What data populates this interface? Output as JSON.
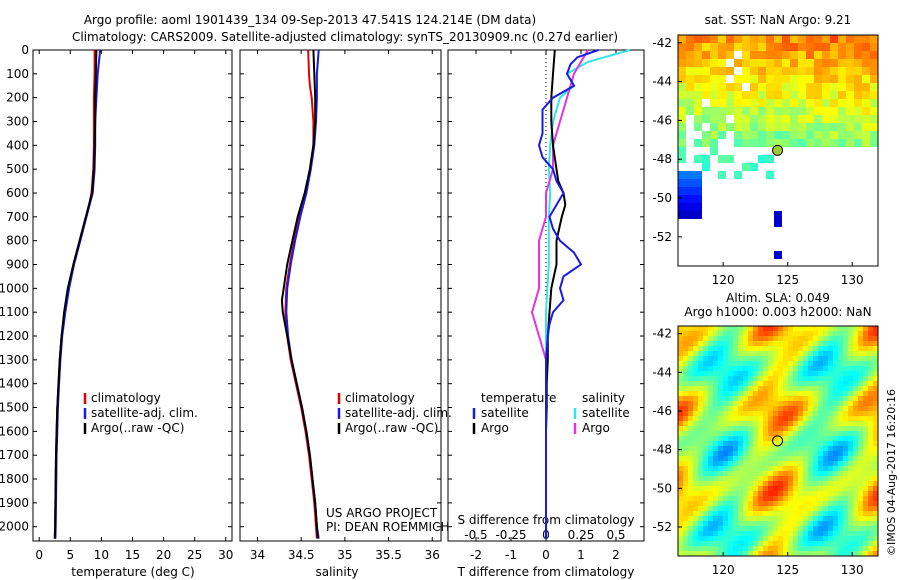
{
  "header": {
    "line1": "Argo profile: aoml 1901439_134 09-Sep-2013 47.541S 124.214E (DM data)",
    "line2": "Climatology: CARS2009. Satellite-adjusted climatology: synTS_20130909.nc (0.27d earlier)"
  },
  "colors": {
    "climatology": "#e00000",
    "satellite": "#1a1ae6",
    "argo": "#000000",
    "sal_satellite": "#33e6e6",
    "sal_argo": "#e633e6"
  },
  "chart_data": [
    {
      "type": "line",
      "title": "",
      "xlabel": "temperature (deg C)",
      "ylabel": "",
      "xlim": [
        -1,
        31
      ],
      "ylim": [
        2060,
        0
      ],
      "x_ticks": [
        "0",
        "5",
        "10",
        "15",
        "20",
        "25",
        "30"
      ],
      "y_ticks": [
        "0",
        "100",
        "200",
        "300",
        "400",
        "500",
        "600",
        "700",
        "800",
        "900",
        "1000",
        "1100",
        "1200",
        "1300",
        "1400",
        "1500",
        "1600",
        "1700",
        "1800",
        "1900",
        "2000"
      ],
      "legend": {
        "position": "lower-middle",
        "entries": [
          "climatology",
          "satellite-adj. clim.",
          "Argo(..raw -QC)"
        ]
      },
      "series": [
        {
          "name": "climatology",
          "depth": [
            0,
            100,
            200,
            300,
            400,
            500,
            600,
            650,
            700,
            800,
            900,
            1000,
            1100,
            1200,
            1300,
            1400,
            1500,
            1600,
            1700,
            1800,
            1900,
            2000,
            2050
          ],
          "values": [
            8.9,
            8.9,
            8.8,
            8.8,
            8.8,
            8.7,
            8.4,
            8.0,
            7.5,
            6.5,
            5.5,
            4.7,
            4.1,
            3.6,
            3.3,
            3.1,
            2.9,
            2.8,
            2.7,
            2.65,
            2.6,
            2.55,
            2.5
          ]
        },
        {
          "name": "satellite-adj. clim.",
          "depth": [
            0,
            100,
            200,
            300,
            400,
            500,
            600,
            650,
            700,
            800,
            900,
            1000,
            1100,
            1200,
            1300,
            1400,
            1500,
            1600,
            1700,
            1800,
            1900,
            2000,
            2050
          ],
          "values": [
            9.8,
            9.4,
            9.2,
            9.0,
            9.0,
            8.9,
            8.6,
            8.1,
            7.6,
            6.6,
            5.6,
            4.8,
            4.2,
            3.7,
            3.4,
            3.2,
            3.0,
            2.9,
            2.8,
            2.75,
            2.7,
            2.65,
            2.6
          ]
        },
        {
          "name": "Argo",
          "depth": [
            0,
            100,
            200,
            300,
            400,
            500,
            600,
            650,
            700,
            800,
            900,
            1000,
            1100,
            1200,
            1300,
            1400,
            1500,
            1600,
            1700,
            1800,
            1900,
            2000,
            2050
          ],
          "values": [
            9.2,
            9.1,
            9.0,
            9.0,
            8.9,
            8.8,
            8.5,
            8.0,
            7.5,
            6.5,
            5.5,
            4.6,
            4.0,
            3.6,
            3.3,
            3.1,
            2.9,
            2.8,
            2.7,
            2.65,
            2.6,
            2.55,
            2.5
          ]
        }
      ]
    },
    {
      "type": "line",
      "xlabel": "salinity",
      "xlim": [
        33.8,
        36.1
      ],
      "ylim": [
        2060,
        0
      ],
      "x_ticks": [
        "34",
        "34.5",
        "35",
        "35.5",
        "36"
      ],
      "legend": {
        "position": "lower-right",
        "entries": [
          "climatology",
          "satellite-adj. clim.",
          "Argo(..raw -QC)"
        ]
      },
      "annotation": [
        "US ARGO PROJECT",
        "PI: DEAN ROEMMICH"
      ],
      "series": [
        {
          "name": "climatology",
          "depth": [
            0,
            100,
            150,
            200,
            300,
            400,
            500,
            600,
            700,
            800,
            900,
            1000,
            1100,
            1200,
            1300,
            1400,
            1500,
            1600,
            1700,
            1800,
            1900,
            2000,
            2050
          ],
          "values": [
            34.58,
            34.59,
            34.6,
            34.62,
            34.64,
            34.64,
            34.6,
            34.55,
            34.48,
            34.42,
            34.37,
            34.33,
            34.32,
            34.34,
            34.38,
            34.44,
            34.5,
            34.55,
            34.59,
            34.62,
            34.65,
            34.67,
            34.68
          ]
        },
        {
          "name": "satellite-adj. clim.",
          "depth": [
            0,
            100,
            200,
            300,
            400,
            500,
            600,
            700,
            800,
            900,
            1000,
            1100,
            1200,
            1300,
            1400,
            1500,
            1600,
            1700,
            1800,
            1900,
            2000,
            2050
          ],
          "values": [
            34.7,
            34.68,
            34.68,
            34.67,
            34.65,
            34.61,
            34.56,
            34.49,
            34.43,
            34.38,
            34.34,
            34.33,
            34.35,
            34.39,
            34.45,
            34.51,
            34.56,
            34.6,
            34.63,
            34.66,
            34.68,
            34.7
          ]
        },
        {
          "name": "Argo",
          "depth": [
            0,
            100,
            200,
            300,
            400,
            500,
            600,
            700,
            800,
            900,
            1000,
            1050,
            1100,
            1200,
            1300,
            1400,
            1500,
            1600,
            1700,
            1800,
            1900,
            2000,
            2050
          ],
          "values": [
            34.64,
            34.65,
            34.66,
            34.66,
            34.64,
            34.6,
            34.54,
            34.46,
            34.4,
            34.34,
            34.3,
            34.28,
            34.29,
            34.34,
            34.39,
            34.45,
            34.51,
            34.56,
            34.6,
            34.63,
            34.66,
            34.68,
            34.69
          ]
        }
      ]
    },
    {
      "type": "line",
      "xlabel": "T difference from climatology",
      "xlabel_top": "S difference from climatology",
      "xlim": [
        -2.8,
        2.8
      ],
      "ylim": [
        2060,
        0
      ],
      "x_ticks": [
        "-2",
        "-1",
        "0",
        "1",
        "2"
      ],
      "x_ticks_top": [
        "-0.5",
        "-0.25",
        "0",
        "0.25",
        "0.5"
      ],
      "legend": {
        "position": "lower",
        "columns": [
          {
            "head": "temperature",
            "entries": [
              "satellite",
              "Argo"
            ]
          },
          {
            "head": "salinity",
            "entries": [
              "satellite",
              "Argo"
            ]
          }
        ]
      },
      "series": [
        {
          "name": "temperature satellite",
          "depth": [
            0,
            30,
            60,
            100,
            150,
            200,
            250,
            300,
            350,
            400,
            450,
            500,
            550,
            600,
            650,
            700,
            750,
            800,
            850,
            900,
            950,
            1000,
            1050,
            1100,
            1150,
            1200,
            1300,
            1400,
            1500,
            1600,
            1700,
            1800,
            1900,
            2000,
            2050
          ],
          "values": [
            1.5,
            0.9,
            0.7,
            0.6,
            0.8,
            0.2,
            -0.1,
            -0.1,
            -0.1,
            -0.2,
            -0.1,
            0.2,
            0.3,
            0.5,
            0.3,
            0.1,
            0.2,
            0.4,
            0.8,
            1.0,
            0.5,
            0.4,
            0.5,
            0.2,
            0.1,
            0.05,
            0.0,
            0.0,
            0.0,
            0.0,
            0.0,
            0.0,
            0.0,
            0.0,
            0.0
          ]
        },
        {
          "name": "temperature Argo",
          "depth": [
            0,
            100,
            200,
            300,
            400,
            500,
            550,
            600,
            650,
            700,
            800,
            900,
            1000,
            1100,
            1200,
            1300,
            1400,
            1500,
            1600,
            1700,
            1800,
            1900,
            2000,
            2050
          ],
          "values": [
            0.25,
            0.2,
            0.15,
            0.15,
            0.2,
            0.3,
            0.35,
            0.5,
            0.55,
            0.45,
            0.3,
            0.3,
            0.15,
            0.1,
            0.05,
            0.05,
            0.02,
            0.02,
            0.0,
            0.0,
            0.0,
            0.0,
            0.0,
            0.0
          ]
        },
        {
          "name": "salinity satellite",
          "depth": [
            0,
            50,
            100,
            150,
            200,
            300,
            400,
            500,
            600,
            700,
            800,
            900,
            1000,
            1100,
            1200,
            1300,
            1400,
            1500,
            1600,
            1700,
            1800,
            1900,
            2000,
            2050
          ],
          "values": [
            0.6,
            0.3,
            0.15,
            0.2,
            0.1,
            0.05,
            0.03,
            0.02,
            0.03,
            0.02,
            0.02,
            0.02,
            0.01,
            0.0,
            0.0,
            0.0,
            0.0,
            0.0,
            0.0,
            0.0,
            0.0,
            0.0,
            0.0,
            0.0
          ]
        },
        {
          "name": "salinity Argo",
          "depth": [
            0,
            50,
            100,
            200,
            300,
            400,
            500,
            600,
            700,
            800,
            900,
            1000,
            1100,
            1200,
            1300,
            1400,
            1500,
            1600,
            1700,
            1800,
            1900,
            2000,
            2050
          ],
          "values": [
            0.3,
            0.25,
            0.2,
            0.15,
            0.1,
            0.05,
            0.05,
            0.0,
            0.0,
            -0.05,
            -0.05,
            -0.05,
            -0.1,
            -0.05,
            0.0,
            0.0,
            0.0,
            0.0,
            0.0,
            0.0,
            0.0,
            0.0,
            0.0
          ]
        }
      ]
    },
    {
      "type": "heatmap",
      "title": "sat. SST: NaN Argo: 9.21",
      "xlim": [
        116.5,
        132
      ],
      "ylim": [
        -53.5,
        -41.6
      ],
      "x_ticks": [
        "120",
        "125",
        "130"
      ],
      "y_ticks": [
        "-42",
        "-44",
        "-46",
        "-48",
        "-50",
        "-52"
      ],
      "marker": {
        "lon": 124.214,
        "lat": -47.541
      }
    },
    {
      "type": "heatmap",
      "title": "Altim. SLA: 0.049",
      "subtitle": "Argo h1000: 0.003 h2000: NaN",
      "xlim": [
        116.5,
        132
      ],
      "ylim": [
        -53.5,
        -41.6
      ],
      "x_ticks": [
        "120",
        "125",
        "130"
      ],
      "y_ticks": [
        "-42",
        "-44",
        "-46",
        "-48",
        "-50",
        "-52"
      ],
      "marker": {
        "lon": 124.214,
        "lat": -47.541
      },
      "side_note": "©IMOS 04-Aug-2017 16:20:16"
    }
  ]
}
